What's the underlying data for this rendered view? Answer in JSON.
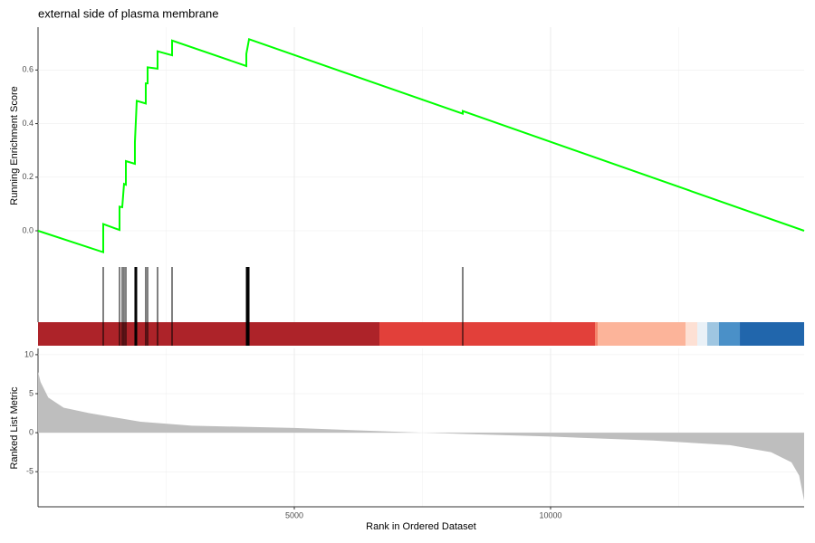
{
  "chart_data": [
    {
      "type": "line",
      "title": "external side of plasma membrane",
      "ylabel": "Running Enrichment Score",
      "x": [
        0,
        1272,
        1272,
        1590,
        1590,
        1643,
        1678,
        1714,
        1714,
        1890,
        1890,
        1926,
        2102,
        2102,
        2138,
        2138,
        2332,
        2332,
        2615,
        2615,
        4064,
        4064,
        4117,
        8286,
        8286,
        14947
      ],
      "values": [
        0,
        -0.08,
        0.025,
        0.003,
        0.09,
        0.088,
        0.175,
        0.172,
        0.26,
        0.25,
        0.33,
        0.485,
        0.475,
        0.55,
        0.55,
        0.61,
        0.605,
        0.67,
        0.655,
        0.71,
        0.615,
        0.66,
        0.715,
        0.437,
        0.447,
        0
      ],
      "color": "#00ff00",
      "xlim": [
        0,
        14947
      ],
      "ylim": [
        -0.125,
        0.76
      ],
      "yticks": [
        {
          "value": 0,
          "label": "0.0"
        },
        0.2,
        0.4,
        0.6
      ]
    },
    {
      "type": "rug",
      "x": [
        1272,
        1590,
        1643,
        1678,
        1714,
        1890,
        1908,
        1926,
        2102,
        2138,
        2332,
        2615,
        4064,
        4081,
        4099,
        4117,
        8286
      ],
      "color": "#000000",
      "xlim": [
        0,
        14947
      ],
      "band_edges": [
        0,
        6661,
        10866,
        10919,
        12633,
        12862,
        13057,
        13286,
        13693,
        14947
      ],
      "band_colors": [
        "#ad2329",
        "#e2403a",
        "#f4836b",
        "#fcb49a",
        "#fde0d4",
        "#eaf1f7",
        "#9fc6e1",
        "#4a90c8",
        "#2166ac"
      ]
    },
    {
      "type": "area",
      "ylabel": "Ranked List Metric",
      "xlabel": "Rank in Ordered Dataset",
      "x": [
        0,
        50,
        200,
        500,
        1000,
        2000,
        3000,
        5000,
        7500,
        10000,
        12000,
        13500,
        14300,
        14700,
        14850,
        14947
      ],
      "values": [
        7.8,
        6.5,
        4.5,
        3.2,
        2.5,
        1.4,
        0.9,
        0.6,
        0,
        -0.5,
        -1.0,
        -1.6,
        -2.5,
        -3.8,
        -5.5,
        -8.7
      ],
      "color": "#bebebe",
      "xlim": [
        0,
        14947
      ],
      "ylim": [
        -9.5,
        10.8
      ],
      "yticks": [
        10,
        5,
        0,
        -5
      ],
      "xticks": [
        5000,
        10000
      ],
      "xminor": [
        2500,
        7500,
        12500
      ]
    }
  ]
}
